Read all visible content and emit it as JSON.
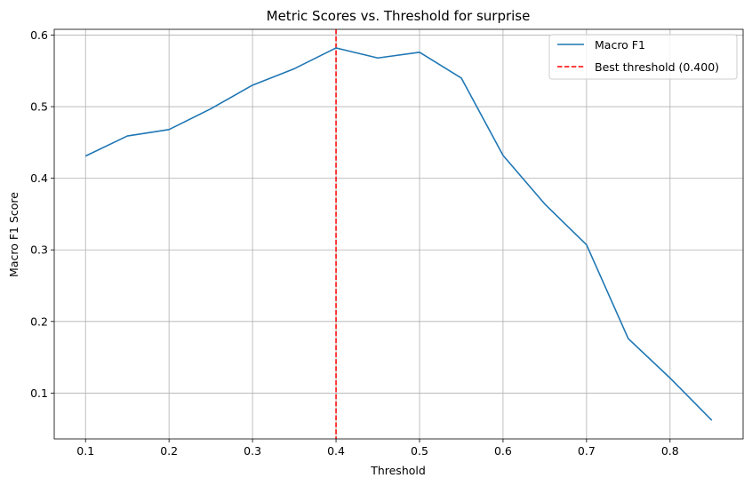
{
  "chart_data": {
    "type": "line",
    "title": "Metric Scores vs. Threshold for surprise",
    "xlabel": "Threshold",
    "ylabel": "Macro F1 Score",
    "x": [
      0.1,
      0.15,
      0.2,
      0.25,
      0.3,
      0.35,
      0.4,
      0.45,
      0.5,
      0.55,
      0.6,
      0.65,
      0.7,
      0.75,
      0.8,
      0.85
    ],
    "series": [
      {
        "name": "Macro F1",
        "color": "#1f77b4",
        "values": [
          0.431,
          0.459,
          0.468,
          0.497,
          0.53,
          0.553,
          0.582,
          0.568,
          0.576,
          0.54,
          0.432,
          0.364,
          0.307,
          0.176,
          0.121,
          0.062
        ]
      }
    ],
    "reference_lines": [
      {
        "axis": "x",
        "value": 0.4,
        "color": "#ff0000",
        "style": "dashed",
        "label": "Best threshold (0.400)"
      }
    ],
    "xlim": [
      0.0625,
      0.8875
    ],
    "ylim": [
      0.036,
      0.608
    ],
    "xticks": [
      0.1,
      0.2,
      0.3,
      0.4,
      0.5,
      0.6,
      0.7,
      0.8
    ],
    "xtick_labels": [
      "0.1",
      "0.2",
      "0.3",
      "0.4",
      "0.5",
      "0.6",
      "0.7",
      "0.8"
    ],
    "yticks": [
      0.1,
      0.2,
      0.3,
      0.4,
      0.5,
      0.6
    ],
    "ytick_labels": [
      "0.1",
      "0.2",
      "0.3",
      "0.4",
      "0.5",
      "0.6"
    ],
    "grid": true,
    "legend_position": "top-right"
  }
}
